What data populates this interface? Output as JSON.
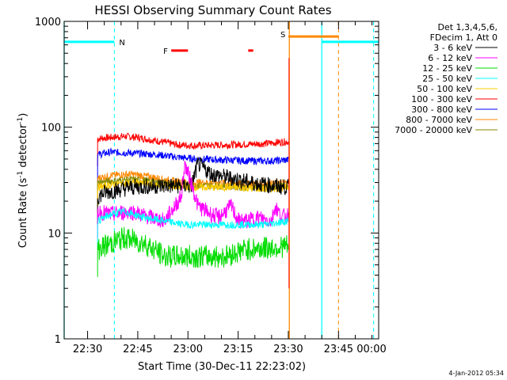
{
  "chart_data": {
    "type": "line",
    "title": "HESSI Observing Summary Count Rates",
    "xlabel": "Start Time (30-Dec-11 22:23:02)",
    "ylabel": "Count Rate (s",
    "ylabel_sup": "-1",
    "ylabel_mid": " detector",
    "ylabel_sup2": "-1",
    "ylabel_end": ")",
    "y_scale": "log",
    "ylim": [
      1,
      1000
    ],
    "y_ticks": [
      "1",
      "10",
      "100",
      "1000"
    ],
    "xlim_minutes_since_2223": [
      0,
      94
    ],
    "x_ticks": [
      {
        "label": "22:30",
        "min": 7
      },
      {
        "label": "22:45",
        "min": 22
      },
      {
        "label": "23:00",
        "min": 37
      },
      {
        "label": "23:15",
        "min": 52
      },
      {
        "label": "23:30",
        "min": 67
      },
      {
        "label": "23:45",
        "min": 82
      },
      {
        "label": "00:00",
        "min": 97
      }
    ],
    "legend_header": [
      "Det 1,3,4,5,6,",
      "FDecim 1, Att 0"
    ],
    "footer_date": "4-Jan-2012 05:34",
    "series": [
      {
        "name": "3 - 6 keV",
        "color": "#000000",
        "start": 10,
        "end": 68,
        "points": [
          [
            10,
            22
          ],
          [
            12,
            24
          ],
          [
            20,
            27
          ],
          [
            30,
            28
          ],
          [
            38,
            28
          ],
          [
            40,
            45
          ],
          [
            44,
            36
          ],
          [
            50,
            33
          ],
          [
            56,
            30
          ],
          [
            62,
            28
          ],
          [
            67,
            27
          ]
        ]
      },
      {
        "name": "6 - 12 keV",
        "color": "#ff00ff",
        "start": 10,
        "end": 68,
        "points": [
          [
            10,
            16
          ],
          [
            14,
            15
          ],
          [
            20,
            16
          ],
          [
            26,
            14
          ],
          [
            30,
            13
          ],
          [
            35,
            22
          ],
          [
            36,
            45
          ],
          [
            38,
            30
          ],
          [
            40,
            18
          ],
          [
            44,
            15
          ],
          [
            46,
            14
          ],
          [
            50,
            18
          ],
          [
            52,
            13
          ],
          [
            55,
            13
          ],
          [
            58,
            14
          ],
          [
            62,
            13
          ],
          [
            63,
            18
          ],
          [
            65,
            14
          ],
          [
            67,
            15
          ]
        ]
      },
      {
        "name": "12 - 25 keV",
        "color": "#00dd00",
        "start": 10,
        "end": 68,
        "points": [
          [
            10,
            7
          ],
          [
            14,
            8
          ],
          [
            18,
            9
          ],
          [
            24,
            8
          ],
          [
            30,
            6
          ],
          [
            40,
            6
          ],
          [
            48,
            6
          ],
          [
            54,
            7
          ],
          [
            60,
            7.2
          ],
          [
            67,
            7.5
          ]
        ]
      },
      {
        "name": "25 - 50 keV",
        "color": "#00ffff",
        "start": 10,
        "end": 68,
        "points": [
          [
            10,
            13
          ],
          [
            14,
            15
          ],
          [
            18,
            16
          ],
          [
            24,
            14
          ],
          [
            30,
            13
          ],
          [
            36,
            12
          ],
          [
            44,
            12
          ],
          [
            52,
            12
          ],
          [
            60,
            12
          ],
          [
            67,
            13
          ]
        ]
      },
      {
        "name": "50 - 100 keV",
        "color": "#ffcc00",
        "start": 10,
        "end": 68,
        "points": [
          [
            10,
            27
          ],
          [
            16,
            29
          ],
          [
            22,
            30
          ],
          [
            30,
            28
          ],
          [
            40,
            27
          ],
          [
            50,
            27
          ],
          [
            60,
            26
          ],
          [
            67,
            27
          ]
        ]
      },
      {
        "name": "100 - 300 keV",
        "color": "#ff0000",
        "start": 10,
        "end": 68,
        "points": [
          [
            10,
            78
          ],
          [
            14,
            80
          ],
          [
            18,
            82
          ],
          [
            22,
            80
          ],
          [
            28,
            74
          ],
          [
            34,
            68
          ],
          [
            40,
            67
          ],
          [
            48,
            68
          ],
          [
            54,
            69
          ],
          [
            60,
            70
          ],
          [
            64,
            72
          ],
          [
            67,
            73
          ]
        ]
      },
      {
        "name": "300 - 800 keV",
        "color": "#0000ff",
        "start": 10,
        "end": 68,
        "points": [
          [
            10,
            55
          ],
          [
            14,
            58
          ],
          [
            20,
            57
          ],
          [
            28,
            55
          ],
          [
            34,
            52
          ],
          [
            40,
            50
          ],
          [
            48,
            49
          ],
          [
            56,
            48
          ],
          [
            62,
            48
          ],
          [
            67,
            49
          ]
        ]
      },
      {
        "name": "800 - 7000 keV",
        "color": "#ff8800",
        "start": 10,
        "end": 68,
        "points": [
          [
            10,
            33
          ],
          [
            14,
            35
          ],
          [
            20,
            36
          ],
          [
            26,
            34
          ],
          [
            32,
            31
          ],
          [
            38,
            30
          ],
          [
            46,
            30
          ],
          [
            54,
            29
          ],
          [
            60,
            29
          ],
          [
            67,
            30
          ]
        ]
      },
      {
        "name": "7000 - 20000 keV",
        "color": "#888800",
        "start": 10,
        "end": 68,
        "points": [
          [
            10,
            30
          ],
          [
            14,
            31
          ],
          [
            20,
            32
          ],
          [
            26,
            31
          ],
          [
            32,
            29
          ],
          [
            38,
            28
          ],
          [
            46,
            28
          ],
          [
            54,
            27
          ],
          [
            60,
            27
          ],
          [
            67,
            28
          ]
        ]
      }
    ],
    "flags": [
      {
        "label": "N",
        "color": "#00ffff",
        "segments": [
          [
            0,
            15
          ],
          [
            77,
            94
          ]
        ],
        "y": 640
      },
      {
        "label": "F",
        "color": "#ff0000",
        "segments": [
          [
            32,
            37
          ],
          [
            55,
            56.5
          ]
        ],
        "y": 530
      },
      {
        "label": "S",
        "color": "#ff8800",
        "segments": [
          [
            67,
            82
          ]
        ],
        "y": 720
      }
    ],
    "vlines": [
      {
        "min": 0,
        "color": "#00ffff",
        "style": "solid"
      },
      {
        "min": 15,
        "color": "#00ffff",
        "style": "dashed"
      },
      {
        "min": 67.3,
        "color": "#ff8800",
        "style": "solid"
      },
      {
        "min": 77,
        "color": "#00ffff",
        "style": "solid"
      },
      {
        "min": 82,
        "color": "#ff8800",
        "style": "dashed"
      },
      {
        "min": 92.5,
        "color": "#00ffff",
        "style": "dashed"
      }
    ]
  }
}
